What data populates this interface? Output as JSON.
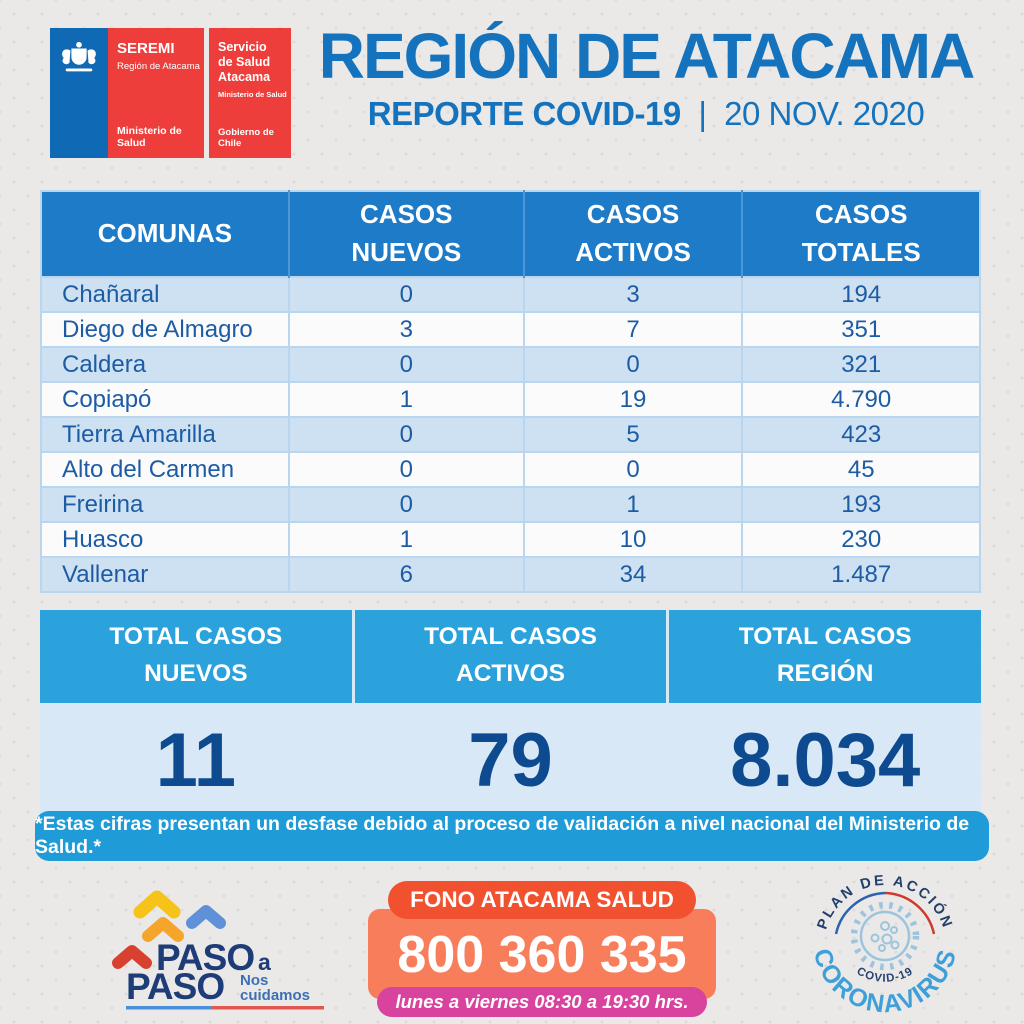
{
  "header": {
    "logo_seremi": {
      "title": "SEREMI",
      "subtitle": "Región de Atacama",
      "ministry": "Ministerio de Salud"
    },
    "logo_servicio": {
      "title": "Servicio\nde Salud\nAtacama",
      "ministry": "Ministerio de Salud",
      "government": "Gobierno de Chile"
    },
    "title": "REGIÓN DE ATACAMA",
    "report_label": "REPORTE COVID-19",
    "separator": "|",
    "date": "20 NOV. 2020"
  },
  "table": {
    "columns": [
      "COMUNAS",
      "CASOS\nNUEVOS",
      "CASOS\nACTIVOS",
      "CASOS\nTOTALES"
    ],
    "rows": [
      {
        "comuna": "Chañaral",
        "nuevos": "0",
        "activos": "3",
        "totales": "194"
      },
      {
        "comuna": "Diego de Almagro",
        "nuevos": "3",
        "activos": "7",
        "totales": "351"
      },
      {
        "comuna": "Caldera",
        "nuevos": "0",
        "activos": "0",
        "totales": "321"
      },
      {
        "comuna": "Copiapó",
        "nuevos": "1",
        "activos": "19",
        "totales": "4.790"
      },
      {
        "comuna": "Tierra Amarilla",
        "nuevos": "0",
        "activos": "5",
        "totales": "423"
      },
      {
        "comuna": "Alto del Carmen",
        "nuevos": "0",
        "activos": "0",
        "totales": "45"
      },
      {
        "comuna": "Freirina",
        "nuevos": "0",
        "activos": "1",
        "totales": "193"
      },
      {
        "comuna": "Huasco",
        "nuevos": "1",
        "activos": "10",
        "totales": "230"
      },
      {
        "comuna": "Vallenar",
        "nuevos": "6",
        "activos": "34",
        "totales": "1.487"
      }
    ]
  },
  "totals": {
    "cells": [
      {
        "label": "TOTAL CASOS\nNUEVOS",
        "value": "11"
      },
      {
        "label": "TOTAL CASOS\nACTIVOS",
        "value": "79"
      },
      {
        "label": "TOTAL CASOS\nREGIÓN",
        "value": "8.034"
      }
    ]
  },
  "footnote": "*Estas cifras presentan un desfase debido al proceso de validación a nivel nacional del Ministerio de Salud.*",
  "footer": {
    "paso": {
      "word1": "PASO",
      "conj": "a",
      "word2": "PASO",
      "tagline1": "Nos",
      "tagline2": "cuidamos"
    },
    "fono": {
      "label": "FONO ATACAMA SALUD",
      "number": "800 360 335",
      "hours": "lunes a viernes 08:30 a 19:30 hrs."
    },
    "stamp": {
      "top": "PLAN DE ACCIÓN",
      "main": "CORONAVIRUS",
      "sub": "COVID-19"
    }
  },
  "colors": {
    "title_blue": "#1573BE",
    "table_header_blue": "#1E7BC8",
    "row_light_blue": "#CEE1F3",
    "row_text_navy": "#1D5CA4",
    "totals_band_cyan": "#2BA2DC",
    "totals_value_bg": "#D8E8F6",
    "totals_value_text": "#0D4A8F",
    "footnote_cyan": "#1F9BD7",
    "logo_red": "#EE3E3B",
    "logo_blue": "#0F69B4",
    "fono_label_red": "#F1512F",
    "fono_panel_salmon": "#F87E5B",
    "fono_hours_magenta": "#D7439D",
    "paso_navy": "#1E3C78",
    "stamp_light_blue": "#3E9FD9"
  }
}
